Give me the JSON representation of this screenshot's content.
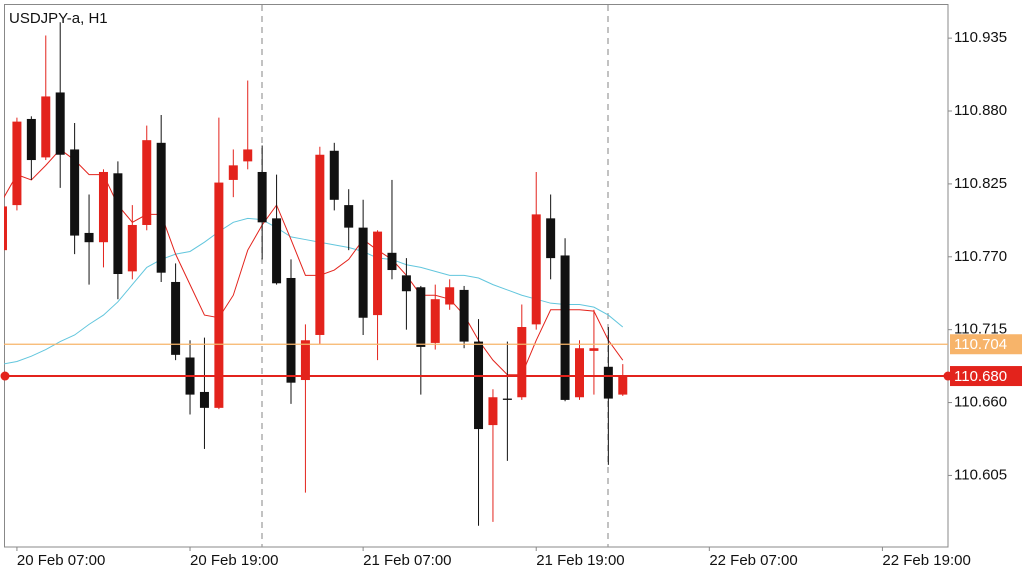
{
  "chart_data": {
    "type": "candlestick",
    "title": "USDJPY-a, H1",
    "categories": [
      null,
      "20 Feb 07:00",
      null,
      null,
      null,
      null,
      null,
      null,
      null,
      null,
      null,
      null,
      null,
      "20 Feb 19:00",
      null,
      null,
      null,
      null,
      null,
      null,
      null,
      null,
      null,
      null,
      null,
      "21 Feb 07:00",
      null,
      null,
      null,
      null,
      null,
      null,
      null,
      null,
      null,
      null,
      null,
      "21 Feb 19:00",
      null,
      null,
      null,
      null,
      null,
      null,
      null,
      null,
      null,
      null,
      null,
      "22 Feb 07:00",
      null,
      null,
      null,
      null,
      null,
      null,
      null,
      null,
      null,
      null,
      null,
      "22 Feb 19:00"
    ],
    "open": [
      110.775,
      110.809,
      110.874,
      110.845,
      110.894,
      110.851,
      110.788,
      110.781,
      110.833,
      110.759,
      110.794,
      110.856,
      110.751,
      110.694,
      110.668,
      110.656,
      110.828,
      110.842,
      110.834,
      110.799,
      110.754,
      110.677,
      110.711,
      110.85,
      110.809,
      110.792,
      110.726,
      110.773,
      110.756,
      110.747,
      110.705,
      110.734,
      110.745,
      110.706,
      110.643,
      110.663,
      110.664,
      110.719,
      110.799,
      110.771,
      110.664,
      110.699,
      110.687,
      110.666,
      null,
      null,
      null,
      null,
      null,
      null,
      null,
      null,
      null,
      null,
      null,
      null,
      null,
      null,
      null,
      null,
      null,
      null
    ],
    "high": [
      110.813,
      110.875,
      110.876,
      110.937,
      110.947,
      110.871,
      110.817,
      110.836,
      110.842,
      110.809,
      110.869,
      110.877,
      110.765,
      110.707,
      110.709,
      110.875,
      110.851,
      110.903,
      110.854,
      110.832,
      110.768,
      110.719,
      110.853,
      110.856,
      110.821,
      110.813,
      110.79,
      110.828,
      110.769,
      110.748,
      110.749,
      110.753,
      110.748,
      110.723,
      110.67,
      110.706,
      110.734,
      110.834,
      110.817,
      110.784,
      110.707,
      110.73,
      110.717,
      110.689,
      null,
      null,
      null,
      null,
      null,
      null,
      null,
      null,
      null,
      null,
      null,
      null,
      null,
      null,
      null,
      null,
      null,
      null
    ],
    "low": [
      110.775,
      110.805,
      110.828,
      110.843,
      110.822,
      110.772,
      110.749,
      110.762,
      110.738,
      110.753,
      110.79,
      110.751,
      110.692,
      110.651,
      110.625,
      110.655,
      110.815,
      110.836,
      110.768,
      110.749,
      110.659,
      110.592,
      110.704,
      110.805,
      110.775,
      110.711,
      110.692,
      110.753,
      110.715,
      110.666,
      110.7,
      110.73,
      110.701,
      110.567,
      110.57,
      110.616,
      110.662,
      110.715,
      110.753,
      110.661,
      110.662,
      110.666,
      110.613,
      110.665,
      null,
      null,
      null,
      null,
      null,
      null,
      null,
      null,
      null,
      null,
      null,
      null,
      null,
      null,
      null,
      null,
      null,
      null
    ],
    "close": [
      110.808,
      110.872,
      110.843,
      110.891,
      110.847,
      110.786,
      110.781,
      110.834,
      110.757,
      110.794,
      110.858,
      110.758,
      110.696,
      110.666,
      110.656,
      110.826,
      110.839,
      110.851,
      110.796,
      110.75,
      110.675,
      110.707,
      110.847,
      110.813,
      110.792,
      110.724,
      110.789,
      110.76,
      110.744,
      110.702,
      110.738,
      110.747,
      110.706,
      110.64,
      110.664,
      110.662,
      110.717,
      110.802,
      110.769,
      110.662,
      110.701,
      110.701,
      110.663,
      110.68,
      null,
      null,
      null,
      null,
      null,
      null,
      null,
      null,
      null,
      null,
      null,
      null,
      null,
      null,
      null,
      null,
      null,
      null
    ],
    "up_color": "#e3231c",
    "down_color": "#111111",
    "series": [
      {
        "color": "#62c6dd",
        "values": [
          110.689,
          110.691,
          110.695,
          110.7,
          110.706,
          110.711,
          110.719,
          110.726,
          110.736,
          110.749,
          110.762,
          110.768,
          110.772,
          110.774,
          110.781,
          110.789,
          110.796,
          110.799,
          110.798,
          110.792,
          110.785,
          110.783,
          110.781,
          110.779,
          110.777,
          110.774,
          110.769,
          110.768,
          110.764,
          110.762,
          110.759,
          110.756,
          110.756,
          110.754,
          110.749,
          110.745,
          110.741,
          110.738,
          110.735,
          110.734,
          110.734,
          110.732,
          110.726,
          110.717,
          null,
          null,
          null,
          null,
          null,
          null,
          null,
          null,
          null,
          null,
          null,
          null,
          null,
          null,
          null,
          null,
          null,
          null
        ]
      },
      {
        "color": "#e3231c",
        "values": [
          110.813,
          110.832,
          110.828,
          110.839,
          110.851,
          110.843,
          110.832,
          110.832,
          110.809,
          110.796,
          110.802,
          110.802,
          110.772,
          110.749,
          110.726,
          110.724,
          110.741,
          110.775,
          110.794,
          110.809,
          110.783,
          110.756,
          110.756,
          110.76,
          110.768,
          110.783,
          110.775,
          110.768,
          110.756,
          110.741,
          110.741,
          110.738,
          110.726,
          110.707,
          110.692,
          110.681,
          110.681,
          110.707,
          110.73,
          110.73,
          110.73,
          110.729,
          110.707,
          110.692,
          null,
          null,
          null,
          null,
          null,
          null,
          null,
          null,
          null,
          null,
          null,
          null,
          null,
          null,
          null,
          null,
          null,
          null
        ]
      }
    ],
    "price_lines": [
      {
        "value": 110.704,
        "color": "#f7b46a"
      },
      {
        "value": 110.68,
        "label": "110.680",
        "color": "#e3231c"
      }
    ],
    "ylim": [
      110.551,
      110.96
    ],
    "yticks": [
      110.935,
      {
        "value": 110.88,
        "label": "110.880"
      },
      110.825,
      {
        "value": 110.77,
        "label": "110.770"
      },
      110.715,
      {
        "value": 110.66,
        "label": "110.660"
      },
      110.605
    ]
  }
}
